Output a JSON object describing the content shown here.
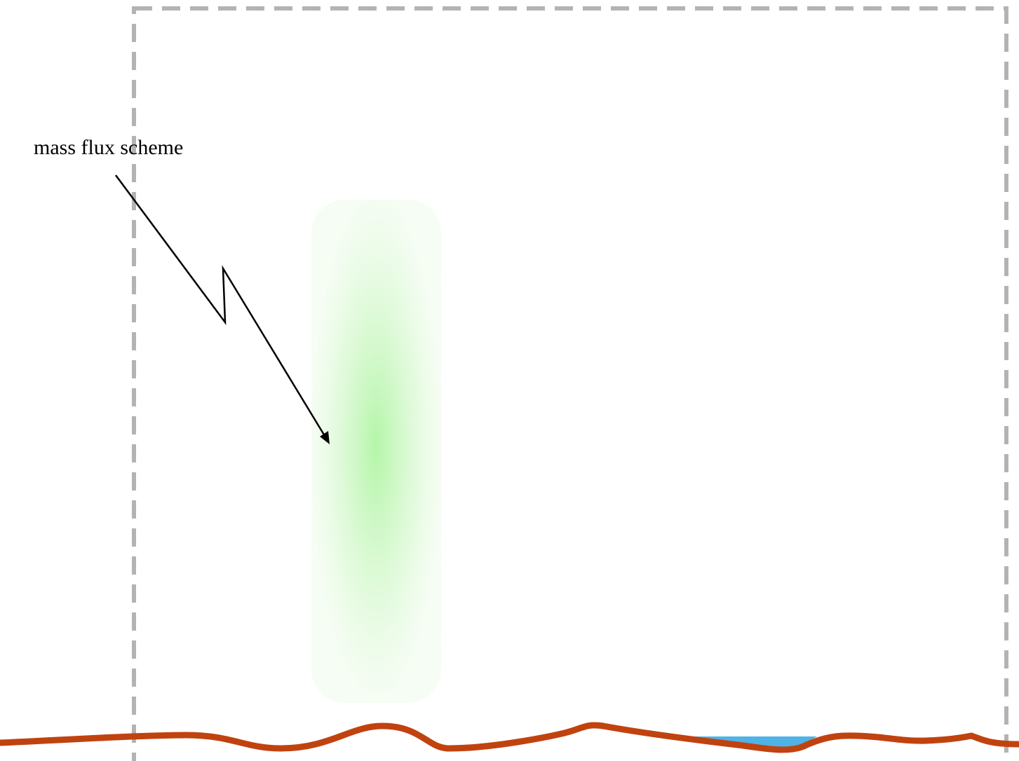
{
  "annotation": {
    "label": "mass flux scheme"
  },
  "colors": {
    "background": "#ffffff",
    "domain_boundary": "#b3b3b3",
    "plume_core": "#b4f5a8",
    "plume_edge": "#eefbea",
    "terrain": "#c0430f",
    "water": "#4fb3e6",
    "arrow": "#000000"
  },
  "icons": {
    "domain_boundary": "dashed-rectangle",
    "plume": "green-gradient-column",
    "terrain": "wavy-ground-line",
    "water": "blue-water-patch",
    "arrow": "lightning-arrow"
  }
}
